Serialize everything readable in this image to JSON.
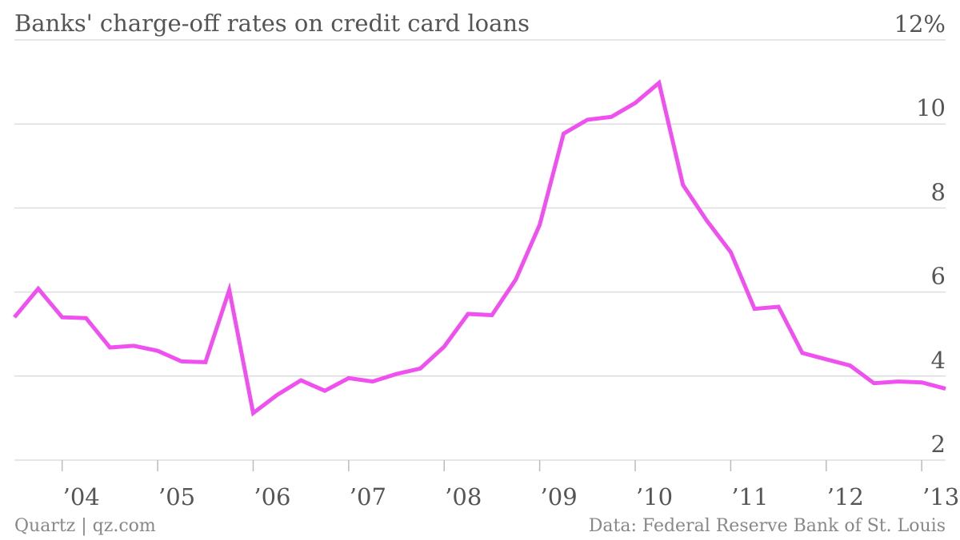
{
  "title": "Banks' charge-off rates on credit card loans",
  "footer": {
    "credit": "Quartz | qz.com",
    "source": "Data: Federal Reserve Bank of St. Louis"
  },
  "colors": {
    "line": "#f050f0",
    "grid": "#dddddd",
    "axis_text": "#555555",
    "footer_text": "#888888"
  },
  "chart_data": {
    "type": "line",
    "title": "Banks' charge-off rates on credit card loans",
    "xlabel": "",
    "ylabel": "",
    "ylim": [
      2,
      12
    ],
    "xlim": [
      2003.5,
      2013.25
    ],
    "y_ticks": [
      {
        "value": 2,
        "label": "2"
      },
      {
        "value": 4,
        "label": "4"
      },
      {
        "value": 6,
        "label": "6"
      },
      {
        "value": 8,
        "label": "8"
      },
      {
        "value": 10,
        "label": "10"
      },
      {
        "value": 12,
        "label": "12%"
      }
    ],
    "x_ticks": [
      {
        "value": 2004,
        "label": "’04"
      },
      {
        "value": 2005,
        "label": "’05"
      },
      {
        "value": 2006,
        "label": "’06"
      },
      {
        "value": 2007,
        "label": "’07"
      },
      {
        "value": 2008,
        "label": "’08"
      },
      {
        "value": 2009,
        "label": "’09"
      },
      {
        "value": 2010,
        "label": "’10"
      },
      {
        "value": 2011,
        "label": "’11"
      },
      {
        "value": 2012,
        "label": "’12"
      },
      {
        "value": 2013,
        "label": "’13"
      }
    ],
    "grid": true,
    "series": [
      {
        "x": [
          2003.5,
          2003.75,
          2004.0,
          2004.25,
          2004.5,
          2004.75,
          2005.0,
          2005.25,
          2005.5,
          2005.75,
          2006.0,
          2006.25,
          2006.5,
          2006.75,
          2007.0,
          2007.25,
          2007.5,
          2007.75,
          2008.0,
          2008.25,
          2008.5,
          2008.75,
          2009.0,
          2009.25,
          2009.5,
          2009.75,
          2010.0,
          2010.25,
          2010.5,
          2010.75,
          2011.0,
          2011.25,
          2011.5,
          2011.75,
          2012.0,
          2012.25,
          2012.5,
          2012.75,
          2013.0,
          2013.25
        ],
        "y": [
          5.4,
          6.08,
          5.4,
          5.38,
          4.68,
          4.72,
          4.6,
          4.35,
          4.33,
          6.05,
          3.12,
          3.55,
          3.9,
          3.65,
          3.95,
          3.87,
          4.05,
          4.18,
          4.7,
          5.48,
          5.45,
          6.3,
          7.6,
          9.77,
          10.1,
          10.17,
          10.5,
          10.98,
          8.55,
          7.7,
          6.95,
          5.6,
          5.65,
          4.55,
          4.4,
          4.25,
          3.83,
          3.87,
          3.85,
          3.7
        ]
      }
    ]
  }
}
